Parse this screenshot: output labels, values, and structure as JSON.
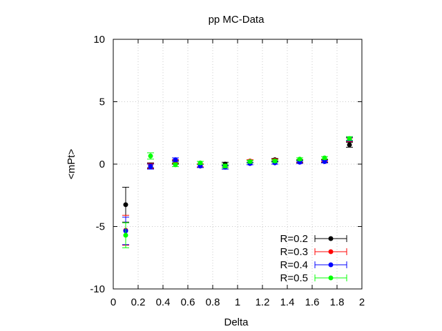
{
  "chart_data": {
    "type": "scatter",
    "title": "pp MC-Data",
    "xlabel": "Delta",
    "ylabel": "<mPt>",
    "xlim": [
      0,
      2
    ],
    "ylim": [
      -10,
      10
    ],
    "grid": true,
    "legend_position": "bottom-right",
    "x_ticks": [
      "0",
      "0.2",
      "0.4",
      "0.6",
      "0.8",
      "1",
      "1.2",
      "1.4",
      "1.6",
      "1.8",
      "2"
    ],
    "y_ticks": [
      "10",
      "5",
      "0",
      "-5",
      "-10"
    ],
    "series": [
      {
        "name": "R=0.2",
        "color": "#000000",
        "x": [
          0.1,
          0.3,
          0.5,
          0.7,
          0.9,
          1.1,
          1.3,
          1.5,
          1.7,
          1.9
        ],
        "y": [
          -3.25,
          -0.1,
          0.15,
          -0.15,
          0.0,
          0.2,
          0.35,
          0.25,
          0.25,
          1.55
        ],
        "err": [
          1.4,
          0.2,
          0.15,
          0.12,
          0.15,
          0.1,
          0.1,
          0.1,
          0.1,
          0.2
        ]
      },
      {
        "name": "R=0.3",
        "color": "#ff0000",
        "x": [
          0.1,
          0.3,
          0.5,
          0.7,
          0.9,
          1.1,
          1.3,
          1.5,
          1.7,
          1.9
        ],
        "y": [
          -5.3,
          -0.15,
          0.2,
          -0.1,
          -0.15,
          0.25,
          0.3,
          0.2,
          0.3,
          1.95
        ],
        "err": [
          1.2,
          0.2,
          0.15,
          0.12,
          0.15,
          0.1,
          0.1,
          0.1,
          0.1,
          0.15
        ]
      },
      {
        "name": "R=0.4",
        "color": "#0000ff",
        "x": [
          0.1,
          0.3,
          0.5,
          0.7,
          0.9,
          1.1,
          1.3,
          1.5,
          1.7,
          1.9
        ],
        "y": [
          -5.35,
          -0.2,
          0.35,
          -0.15,
          -0.25,
          0.05,
          0.1,
          0.15,
          0.2,
          2.0
        ],
        "err": [
          1.1,
          0.2,
          0.15,
          0.12,
          0.15,
          0.1,
          0.1,
          0.1,
          0.1,
          0.15
        ]
      },
      {
        "name": "R=0.5",
        "color": "#00ff00",
        "x": [
          0.1,
          0.3,
          0.5,
          0.7,
          0.9,
          1.1,
          1.3,
          1.5,
          1.7,
          1.9
        ],
        "y": [
          -5.7,
          0.65,
          -0.05,
          0.1,
          -0.15,
          0.2,
          0.25,
          0.4,
          0.5,
          2.05
        ],
        "err": [
          1.0,
          0.25,
          0.15,
          0.12,
          0.15,
          0.1,
          0.1,
          0.1,
          0.1,
          0.15
        ]
      }
    ]
  }
}
